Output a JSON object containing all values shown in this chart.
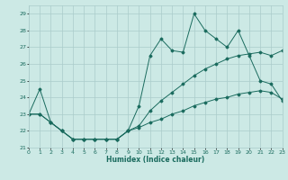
{
  "title": "",
  "xlabel": "Humidex (Indice chaleur)",
  "xlim": [
    0,
    23
  ],
  "ylim": [
    21,
    29.5
  ],
  "yticks": [
    21,
    22,
    23,
    24,
    25,
    26,
    27,
    28,
    29
  ],
  "xticks": [
    0,
    1,
    2,
    3,
    4,
    5,
    6,
    7,
    8,
    9,
    10,
    11,
    12,
    13,
    14,
    15,
    16,
    17,
    18,
    19,
    20,
    21,
    22,
    23
  ],
  "background_color": "#cce9e5",
  "grid_color": "#aaccca",
  "line_color": "#1a6b5e",
  "series": [
    [
      23,
      24.5,
      22.5,
      22,
      21.5,
      21.5,
      21.5,
      21.5,
      21.5,
      22,
      23.5,
      26.5,
      27.5,
      26.8,
      26.7,
      29,
      28,
      27.5,
      27,
      28,
      26.5,
      25,
      24.8,
      23.8
    ],
    [
      23,
      23,
      22.5,
      22,
      21.5,
      21.5,
      21.5,
      21.5,
      21.5,
      22,
      22.3,
      23.2,
      23.8,
      24.3,
      24.8,
      25.3,
      25.7,
      26.0,
      26.3,
      26.5,
      26.6,
      26.7,
      26.5,
      26.8
    ],
    [
      23,
      23,
      22.5,
      22,
      21.5,
      21.5,
      21.5,
      21.5,
      21.5,
      22,
      22.2,
      22.5,
      22.7,
      23.0,
      23.2,
      23.5,
      23.7,
      23.9,
      24.0,
      24.2,
      24.3,
      24.4,
      24.3,
      23.9
    ]
  ]
}
